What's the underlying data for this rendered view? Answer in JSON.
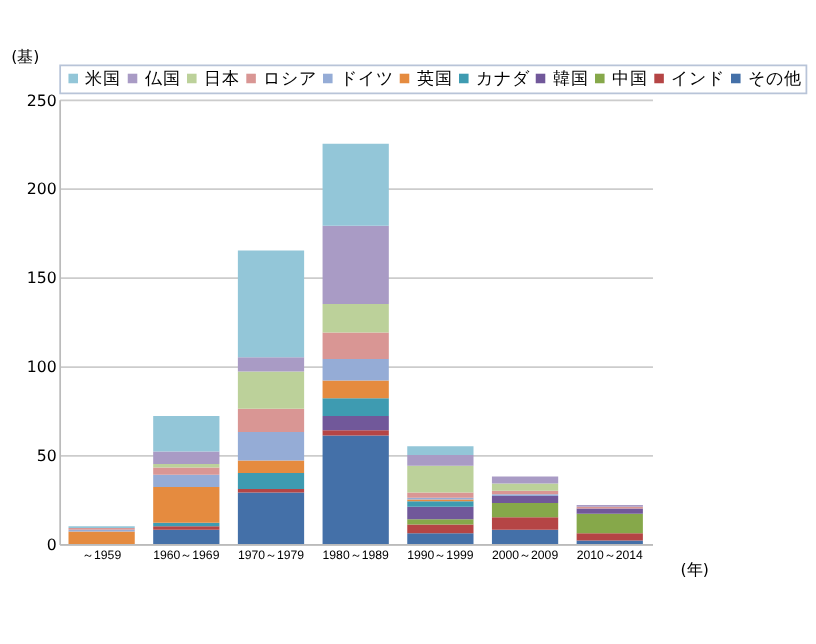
{
  "chart_data": {
    "type": "bar",
    "stacked": true,
    "ylabel": "(基)",
    "xlabel": "(年)",
    "categories": [
      "～1959",
      "1960～1969",
      "1970～1979",
      "1980～1989",
      "1990～1999",
      "2000～2009",
      "2010～2014"
    ],
    "series": [
      {
        "name": "その他",
        "color": "#4470a8",
        "values": [
          0,
          8,
          29,
          61,
          6,
          8,
          2
        ]
      },
      {
        "name": "インド",
        "color": "#b54545",
        "values": [
          0,
          2,
          2,
          3,
          5,
          7,
          4
        ]
      },
      {
        "name": "中国",
        "color": "#86a84a",
        "values": [
          0,
          0,
          0,
          0,
          3,
          8,
          11
        ]
      },
      {
        "name": "韓国",
        "color": "#71589a",
        "values": [
          0,
          0,
          0,
          8,
          7,
          4,
          3
        ]
      },
      {
        "name": "カナダ",
        "color": "#3e9bb1",
        "values": [
          0,
          2,
          9,
          10,
          3,
          0,
          0
        ]
      },
      {
        "name": "英国",
        "color": "#e58b3f",
        "values": [
          7,
          20,
          7,
          10,
          1,
          0,
          0
        ]
      },
      {
        "name": "ドイツ",
        "color": "#95acd6",
        "values": [
          1,
          7,
          16,
          12,
          1,
          1,
          0
        ]
      },
      {
        "name": "ロシア",
        "color": "#d99694",
        "values": [
          1,
          4,
          13,
          15,
          3,
          2,
          1
        ]
      },
      {
        "name": "日本",
        "color": "#bcd19a",
        "values": [
          0,
          2,
          21,
          16,
          15,
          4,
          0
        ]
      },
      {
        "name": "仏国",
        "color": "#a99bc5",
        "values": [
          0,
          7,
          8,
          44,
          6,
          4,
          1
        ]
      },
      {
        "name": "米国",
        "color": "#93c6d8",
        "values": [
          1,
          20,
          60,
          46,
          5,
          0,
          0
        ]
      }
    ],
    "ylim": [
      0,
      250
    ],
    "yticks": [
      0,
      50,
      100,
      150,
      200,
      250
    ],
    "grid": "y",
    "legend": "top"
  }
}
